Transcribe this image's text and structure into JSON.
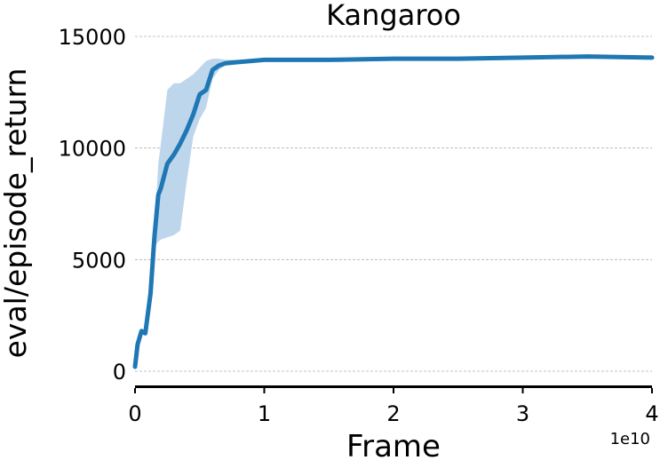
{
  "chart_data": {
    "type": "line",
    "title": "Kangaroo",
    "xlabel": "Frame",
    "ylabel": "eval/episode_return",
    "x_offset_text": "1e10",
    "xlim": [
      0,
      4
    ],
    "ylim": [
      -500,
      15300
    ],
    "xticks": [
      0,
      1,
      2,
      3,
      4
    ],
    "xtick_labels": [
      "0",
      "1",
      "2",
      "3",
      "4"
    ],
    "yticks": [
      0,
      5000,
      10000,
      15000
    ],
    "ytick_labels": [
      "0",
      "5000",
      "10000",
      "15000"
    ],
    "grid": "horizontal dashed",
    "colors": {
      "line": "#1f77b4",
      "band": "#b9d4ea",
      "grid": "#b0b0b0"
    },
    "series": [
      {
        "x": [
          0,
          0.02,
          0.05,
          0.08,
          0.12,
          0.15,
          0.18,
          0.2,
          0.25,
          0.3,
          0.35,
          0.4,
          0.45,
          0.5,
          0.55,
          0.6,
          0.65,
          0.7,
          0.8,
          0.9,
          1.0,
          1.2,
          1.5,
          2.0,
          2.5,
          3.0,
          3.5,
          4.0
        ],
        "y": [
          200,
          1200,
          1800,
          1700,
          3500,
          6000,
          7900,
          8200,
          9300,
          9700,
          10200,
          10800,
          11500,
          12400,
          12600,
          13500,
          13700,
          13800,
          13850,
          13900,
          13950,
          13950,
          13950,
          14000,
          14000,
          14050,
          14100,
          14050
        ],
        "low": [
          200,
          1200,
          1800,
          1700,
          3500,
          5600,
          5800,
          5900,
          6000,
          6100,
          6300,
          8500,
          10500,
          11300,
          11800,
          13100,
          13500,
          13700,
          13800,
          13850,
          13900,
          13900,
          13900,
          13950,
          13950,
          14000,
          14050,
          14000
        ],
        "high": [
          200,
          1200,
          1800,
          1700,
          3500,
          6300,
          9300,
          10200,
          12600,
          12900,
          12900,
          13100,
          13300,
          13600,
          13900,
          14000,
          14000,
          13950,
          13950,
          13950,
          14000,
          14000,
          14000,
          14050,
          14050,
          14100,
          14150,
          14100
        ]
      }
    ]
  }
}
